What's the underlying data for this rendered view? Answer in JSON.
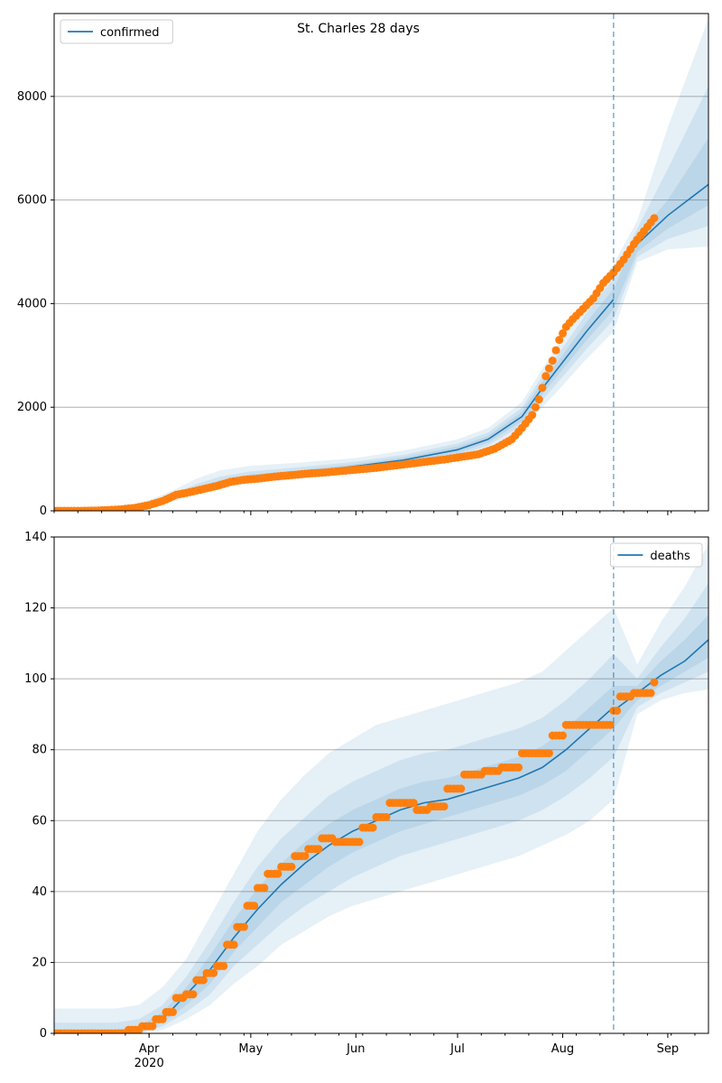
{
  "figure": {
    "title": "St. Charles 28 days"
  },
  "colors": {
    "model_line": "#1f77b4",
    "observed": "#ff7f0e",
    "band": "#1f77b4",
    "grid": "#b0b0b0",
    "vline": "#1f77b4"
  },
  "chart_data": [
    {
      "type": "line",
      "panel": "top",
      "title": "St. Charles 28 days",
      "legend": {
        "entries": [
          "confirmed"
        ],
        "placement": "top-left"
      },
      "xlabel": "",
      "ylabel": "",
      "x_is_date": true,
      "xlim": [
        "2020-03-04",
        "2020-09-13"
      ],
      "ylim": [
        0,
        9600
      ],
      "yticks": [
        0,
        2000,
        4000,
        6000,
        8000
      ],
      "grid": "y",
      "x_major_ticks": [
        {
          "date": "2020-04-01",
          "label": "Apr",
          "sublabel": "2020"
        },
        {
          "date": "2020-05-01",
          "label": "May"
        },
        {
          "date": "2020-06-01",
          "label": "Jun"
        },
        {
          "date": "2020-07-01",
          "label": "Jul"
        },
        {
          "date": "2020-08-01",
          "label": "Aug"
        },
        {
          "date": "2020-09-01",
          "label": "Sep"
        }
      ],
      "vline_date": "2020-08-16",
      "series": [
        {
          "name": "confirmed",
          "kind": "model",
          "x": [
            "2020-03-04",
            "2020-03-20",
            "2020-03-27",
            "2020-04-01",
            "2020-04-08",
            "2020-04-15",
            "2020-04-22",
            "2020-05-01",
            "2020-05-15",
            "2020-06-01",
            "2020-06-15",
            "2020-07-01",
            "2020-07-10",
            "2020-07-20",
            "2020-07-25",
            "2020-08-01",
            "2020-08-08",
            "2020-08-16",
            "2020-08-23",
            "2020-09-01",
            "2020-09-13"
          ],
          "values": [
            0,
            10,
            40,
            110,
            240,
            420,
            540,
            650,
            730,
            860,
            980,
            1180,
            1380,
            1820,
            2280,
            2870,
            3460,
            4080,
            5150,
            5700,
            6300
          ],
          "bands": [
            {
              "lower": [
                0,
                5,
                25,
                70,
                170,
                320,
                430,
                530,
                610,
                720,
                830,
                1010,
                1190,
                1560,
                1930,
                2420,
                2930,
                3460,
                4800,
                5050,
                5100
              ],
              "upper": [
                40,
                60,
                110,
                210,
                390,
                620,
                780,
                870,
                930,
                1020,
                1160,
                1380,
                1600,
                2100,
                2640,
                3340,
                4050,
                4760,
                5600,
                7400,
                9500
              ]
            },
            {
              "lower": [
                0,
                7,
                30,
                85,
                195,
                360,
                470,
                570,
                650,
                770,
                880,
                1070,
                1260,
                1650,
                2060,
                2590,
                3120,
                3690,
                4900,
                5250,
                5500
              ],
              "upper": [
                25,
                40,
                85,
                170,
                320,
                520,
                660,
                760,
                840,
                950,
                1080,
                1300,
                1510,
                1990,
                2500,
                3150,
                3810,
                4480,
                5450,
                6600,
                8200
              ]
            },
            {
              "lower": [
                0,
                8,
                34,
                95,
                215,
                390,
                500,
                605,
                685,
                810,
                925,
                1120,
                1315,
                1730,
                2170,
                2730,
                3290,
                3880,
                5000,
                5450,
                5900
              ],
              "upper": [
                12,
                20,
                60,
                135,
                270,
                460,
                590,
                700,
                780,
                905,
                1030,
                1240,
                1445,
                1910,
                2400,
                3010,
                3640,
                4280,
                5300,
                6000,
                7200
              ]
            }
          ]
        },
        {
          "name": "observed",
          "kind": "points",
          "x": [
            "2020-03-04",
            "2020-03-08",
            "2020-03-12",
            "2020-03-16",
            "2020-03-20",
            "2020-03-24",
            "2020-03-28",
            "2020-04-01",
            "2020-04-05",
            "2020-04-09",
            "2020-04-13",
            "2020-04-17",
            "2020-04-21",
            "2020-04-25",
            "2020-04-29",
            "2020-05-03",
            "2020-05-08",
            "2020-05-13",
            "2020-05-18",
            "2020-05-23",
            "2020-05-28",
            "2020-06-02",
            "2020-06-07",
            "2020-06-12",
            "2020-06-17",
            "2020-06-22",
            "2020-06-27",
            "2020-07-02",
            "2020-07-07",
            "2020-07-12",
            "2020-07-17",
            "2020-07-20",
            "2020-07-23",
            "2020-07-25",
            "2020-07-27",
            "2020-07-29",
            "2020-07-31",
            "2020-08-02",
            "2020-08-04",
            "2020-08-07",
            "2020-08-10",
            "2020-08-13",
            "2020-08-16",
            "2020-08-19",
            "2020-08-22",
            "2020-08-25",
            "2020-08-28"
          ],
          "values": [
            0,
            0,
            0,
            5,
            15,
            30,
            60,
            110,
            190,
            310,
            360,
            420,
            480,
            560,
            600,
            620,
            660,
            690,
            720,
            740,
            770,
            800,
            830,
            870,
            910,
            950,
            990,
            1040,
            1090,
            1200,
            1380,
            1600,
            1850,
            2150,
            2600,
            2900,
            3300,
            3550,
            3700,
            3900,
            4100,
            4400,
            4600,
            4850,
            5150,
            5400,
            5650
          ]
        }
      ]
    },
    {
      "type": "line",
      "panel": "bottom",
      "legend": {
        "entries": [
          "deaths"
        ],
        "placement": "top-right"
      },
      "xlabel": "",
      "ylabel": "",
      "x_is_date": true,
      "xlim": [
        "2020-03-04",
        "2020-09-13"
      ],
      "ylim": [
        0,
        140
      ],
      "yticks": [
        0,
        20,
        40,
        60,
        80,
        100,
        120,
        140
      ],
      "grid": "y",
      "x_major_ticks": [
        {
          "date": "2020-04-01",
          "label": "Apr",
          "sublabel": "2020"
        },
        {
          "date": "2020-05-01",
          "label": "May"
        },
        {
          "date": "2020-06-01",
          "label": "Jun"
        },
        {
          "date": "2020-07-01",
          "label": "Jul"
        },
        {
          "date": "2020-08-01",
          "label": "Aug"
        },
        {
          "date": "2020-09-01",
          "label": "Sep"
        }
      ],
      "vline_date": "2020-08-16",
      "series": [
        {
          "name": "deaths",
          "kind": "model",
          "x": [
            "2020-03-04",
            "2020-03-15",
            "2020-03-22",
            "2020-03-29",
            "2020-04-05",
            "2020-04-12",
            "2020-04-19",
            "2020-04-26",
            "2020-05-03",
            "2020-05-10",
            "2020-05-17",
            "2020-05-24",
            "2020-05-31",
            "2020-06-07",
            "2020-06-14",
            "2020-06-21",
            "2020-06-28",
            "2020-07-05",
            "2020-07-12",
            "2020-07-19",
            "2020-07-26",
            "2020-08-02",
            "2020-08-09",
            "2020-08-16",
            "2020-08-23",
            "2020-08-30",
            "2020-09-06",
            "2020-09-13"
          ],
          "values": [
            0,
            0,
            0.5,
            1,
            4,
            11,
            18,
            27,
            35,
            42,
            48,
            53,
            57,
            60,
            63,
            65,
            66,
            68,
            70,
            72,
            75,
            80,
            86,
            92,
            96,
            101,
            105,
            111
          ],
          "bands": [
            {
              "lower": [
                0,
                0,
                0,
                0,
                1,
                4,
                8,
                14,
                19,
                25,
                29,
                33,
                36,
                38,
                40,
                42,
                44,
                46,
                48,
                50,
                53,
                56,
                60,
                66,
                90,
                94,
                96,
                97
              ],
              "upper": [
                7,
                7,
                7,
                8,
                13,
                21,
                33,
                45,
                57,
                66,
                73,
                79,
                83,
                87,
                89,
                91,
                93,
                95,
                97,
                99,
                102,
                108,
                114,
                120,
                104,
                116,
                126,
                138
              ]
            },
            {
              "lower": [
                0,
                0,
                0,
                0,
                2,
                6,
                11,
                19,
                25,
                31,
                36,
                40,
                44,
                47,
                50,
                52,
                54,
                56,
                58,
                60,
                63,
                67,
                72,
                78,
                92,
                96,
                99,
                102
              ],
              "upper": [
                3,
                3,
                3,
                4,
                8,
                16,
                26,
                37,
                47,
                55,
                61,
                67,
                71,
                74,
                77,
                79,
                80,
                82,
                84,
                86,
                89,
                94,
                100,
                107,
                100,
                109,
                117,
                127
              ]
            },
            {
              "lower": [
                0,
                0,
                0,
                0.5,
                3,
                8,
                14,
                23,
                30,
                37,
                42,
                47,
                51,
                54,
                57,
                59,
                61,
                63,
                65,
                67,
                70,
                74,
                80,
                86,
                94,
                98,
                102,
                106
              ],
              "upper": [
                1,
                1,
                1,
                2,
                6,
                13,
                22,
                32,
                41,
                48,
                54,
                59,
                63,
                66,
                69,
                71,
                72,
                74,
                76,
                78,
                81,
                86,
                92,
                98,
                98,
                105,
                111,
                118
              ]
            }
          ]
        },
        {
          "name": "observed",
          "kind": "points",
          "x": [
            "2020-03-04",
            "2020-03-10",
            "2020-03-16",
            "2020-03-22",
            "2020-03-26",
            "2020-03-30",
            "2020-04-03",
            "2020-04-06",
            "2020-04-09",
            "2020-04-12",
            "2020-04-15",
            "2020-04-18",
            "2020-04-21",
            "2020-04-24",
            "2020-04-27",
            "2020-04-30",
            "2020-05-03",
            "2020-05-06",
            "2020-05-10",
            "2020-05-14",
            "2020-05-18",
            "2020-05-22",
            "2020-05-26",
            "2020-05-30",
            "2020-06-03",
            "2020-06-07",
            "2020-06-11",
            "2020-06-15",
            "2020-06-19",
            "2020-06-23",
            "2020-06-28",
            "2020-07-03",
            "2020-07-09",
            "2020-07-14",
            "2020-07-20",
            "2020-07-26",
            "2020-07-29",
            "2020-08-02",
            "2020-08-08",
            "2020-08-14",
            "2020-08-16",
            "2020-08-18",
            "2020-08-22",
            "2020-08-25",
            "2020-08-28"
          ],
          "values": [
            0,
            0,
            0,
            0,
            1,
            2,
            4,
            6,
            10,
            11,
            15,
            17,
            19,
            25,
            30,
            36,
            41,
            45,
            47,
            50,
            52,
            55,
            54,
            54,
            58,
            61,
            65,
            65,
            63,
            64,
            69,
            73,
            74,
            75,
            79,
            79,
            84,
            87,
            87,
            87,
            91,
            95,
            96,
            96,
            99
          ]
        }
      ]
    }
  ]
}
